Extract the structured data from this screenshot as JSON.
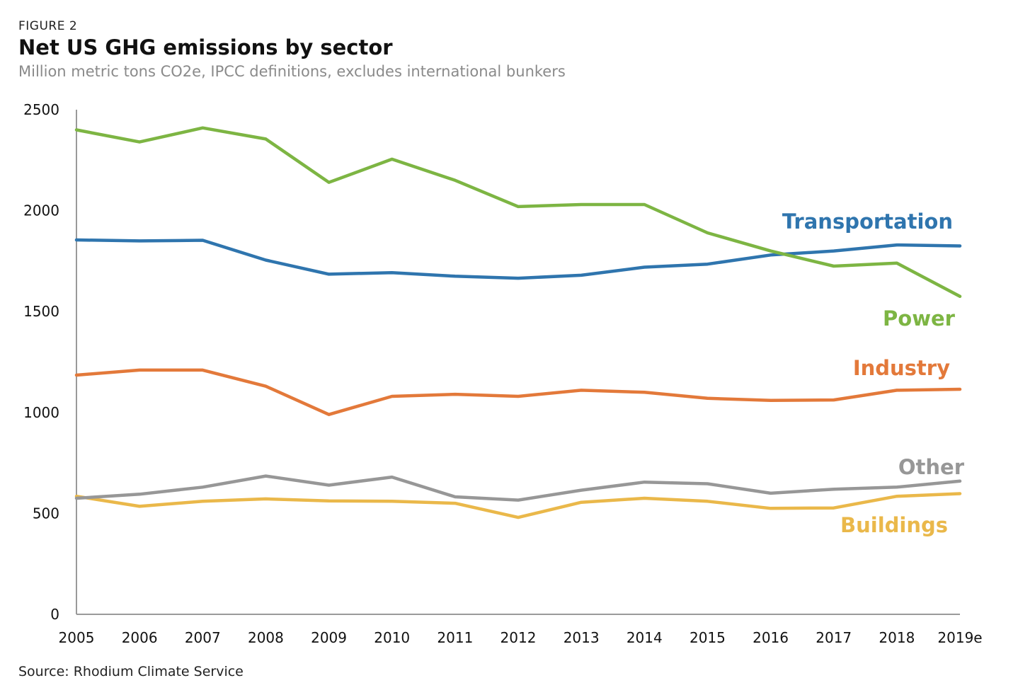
{
  "header": {
    "figure_label": "FIGURE 2",
    "title": "Net US GHG emissions by sector",
    "subtitle": "Million metric tons CO2e, IPCC definitions, excludes international bunkers"
  },
  "footer": {
    "source": "Source: Rhodium Climate Service"
  },
  "chart_data": {
    "type": "line",
    "title": "Net US GHG emissions by sector",
    "subtitle": "Million metric tons CO2e, IPCC definitions, excludes international bunkers",
    "xlabel": "",
    "ylabel": "",
    "x": [
      "2005",
      "2006",
      "2007",
      "2008",
      "2009",
      "2010",
      "2011",
      "2012",
      "2013",
      "2014",
      "2015",
      "2016",
      "2017",
      "2018",
      "2019e"
    ],
    "ylim": [
      0,
      2500
    ],
    "yticks": [
      "0",
      "500",
      "1000",
      "1500",
      "2000",
      "2500"
    ],
    "grid": false,
    "legend": "direct labels at line ends",
    "series": [
      {
        "name": "Power",
        "color": "#7db543",
        "values": [
          2400,
          2340,
          2410,
          2355,
          2140,
          2255,
          2150,
          2020,
          2030,
          2030,
          1890,
          1800,
          1725,
          1740,
          1575
        ]
      },
      {
        "name": "Transportation",
        "color": "#2f75ae",
        "values": [
          1855,
          1850,
          1853,
          1755,
          1685,
          1693,
          1675,
          1665,
          1680,
          1720,
          1735,
          1780,
          1800,
          1830,
          1825
        ]
      },
      {
        "name": "Industry",
        "color": "#e3793a",
        "values": [
          1185,
          1210,
          1210,
          1130,
          990,
          1080,
          1090,
          1080,
          1110,
          1100,
          1070,
          1060,
          1062,
          1110,
          1115
        ]
      },
      {
        "name": "Other",
        "color": "#979797",
        "values": [
          575,
          595,
          630,
          685,
          640,
          680,
          582,
          566,
          615,
          655,
          647,
          600,
          620,
          630,
          660
        ]
      },
      {
        "name": "Buildings",
        "color": "#eab84a",
        "values": [
          585,
          535,
          560,
          572,
          562,
          560,
          550,
          480,
          555,
          575,
          560,
          525,
          527,
          585,
          598
        ]
      }
    ]
  }
}
